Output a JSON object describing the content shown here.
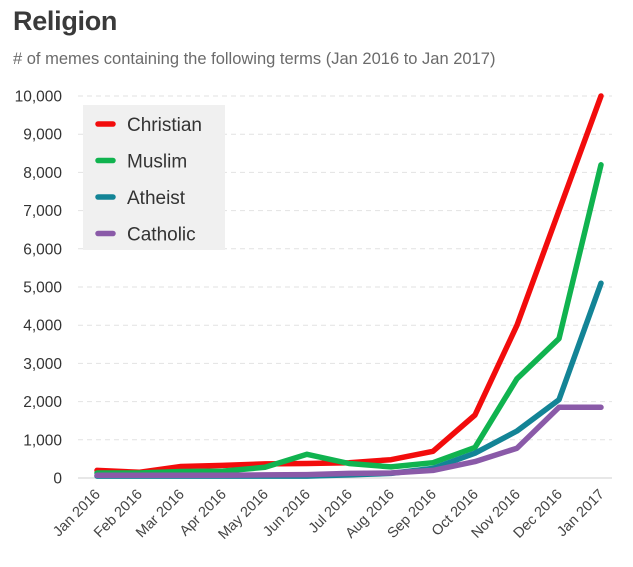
{
  "chart_data": {
    "type": "line",
    "title": "Religion",
    "subtitle": "# of memes containing the following terms (Jan 2016 to Jan 2017)",
    "xlabel": "",
    "ylabel": "",
    "ylim": [
      0,
      10000
    ],
    "yticks": [
      0,
      1000,
      2000,
      3000,
      4000,
      5000,
      6000,
      7000,
      8000,
      9000,
      10000
    ],
    "ytick_labels": [
      "0",
      "1,000",
      "2,000",
      "3,000",
      "4,000",
      "5,000",
      "6,000",
      "7,000",
      "8,000",
      "9,000",
      "10,000"
    ],
    "grid": "horizontal dashed",
    "legend_position": "top-left",
    "categories": [
      "Jan 2016",
      "Feb 2016",
      "Mar 2016",
      "Apr 2016",
      "May 2016",
      "Jun 2016",
      "Jul 2016",
      "Aug 2016",
      "Sep 2016",
      "Oct 2016",
      "Nov 2016",
      "Dec 2016",
      "Jan 2017"
    ],
    "series": [
      {
        "name": "Christian",
        "color": "#f20c0c",
        "values": [
          200,
          150,
          300,
          330,
          370,
          380,
          400,
          480,
          700,
          1650,
          4000,
          7000,
          10000
        ]
      },
      {
        "name": "Muslim",
        "color": "#10b34f",
        "values": [
          130,
          130,
          170,
          180,
          280,
          620,
          380,
          290,
          400,
          800,
          2600,
          3650,
          8200
        ]
      },
      {
        "name": "Atheist",
        "color": "#138496",
        "values": [
          50,
          50,
          50,
          50,
          50,
          50,
          80,
          120,
          250,
          650,
          1230,
          2050,
          5100
        ]
      },
      {
        "name": "Catholic",
        "color": "#8a5aa8",
        "values": [
          70,
          70,
          70,
          70,
          80,
          90,
          120,
          130,
          200,
          430,
          780,
          1850,
          1850
        ]
      }
    ]
  }
}
